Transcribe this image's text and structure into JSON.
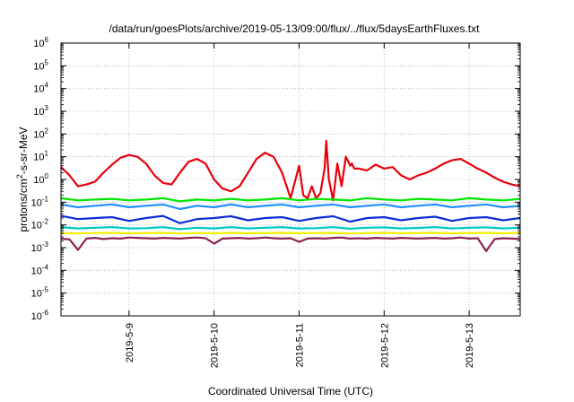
{
  "chart_data": {
    "type": "line",
    "title": "/data/run/goesPlots/archive/2019-05-13/09:00/flux/../flux/5daysEarthFluxes.txt",
    "xlabel": "Coordinated Universal Time (UTC)",
    "ylabel": {
      "base": "protons/cm",
      "sup": "2",
      "rest": "-s-sr-MeV"
    },
    "xlim": [
      "2019-05-08 05:00",
      "2019-05-13 09:00"
    ],
    "x_ticks": [
      "2019-5-9",
      "2019-5-10",
      "2019-5-11",
      "2019-5-12",
      "2019-5-13"
    ],
    "y_scale": "log",
    "ylim": [
      1e-06,
      1000000.0
    ],
    "y_ticks": [
      {
        "exp": -6,
        "label": "10",
        "sup": "-6"
      },
      {
        "exp": -5,
        "label": "10",
        "sup": "-5"
      },
      {
        "exp": -4,
        "label": "10",
        "sup": "-4"
      },
      {
        "exp": -3,
        "label": "10",
        "sup": "-3"
      },
      {
        "exp": -2,
        "label": "10",
        "sup": "-2"
      },
      {
        "exp": -1,
        "label": "10",
        "sup": "-1"
      },
      {
        "exp": 0,
        "label": "10",
        "sup": "0"
      },
      {
        "exp": 1,
        "label": "10",
        "sup": "1"
      },
      {
        "exp": 2,
        "label": "10",
        "sup": "2"
      },
      {
        "exp": 3,
        "label": "10",
        "sup": "3"
      },
      {
        "exp": 4,
        "label": "10",
        "sup": "4"
      },
      {
        "exp": 5,
        "label": "10",
        "sup": "5"
      },
      {
        "exp": 6,
        "label": "10",
        "sup": "6"
      }
    ],
    "grid": true,
    "legend": "none",
    "series": [
      {
        "color": "#e8000b",
        "x": [
          -0.8,
          -0.7,
          -0.6,
          -0.5,
          -0.4,
          -0.3,
          -0.2,
          -0.1,
          0,
          0.1,
          0.2,
          0.3,
          0.4,
          0.5,
          0.6,
          0.7,
          0.8,
          0.9,
          1,
          1.1,
          1.2,
          1.3,
          1.4,
          1.5,
          1.6,
          1.7,
          1.8,
          1.9,
          2,
          2.05,
          2.1,
          2.15,
          2.2,
          2.25,
          2.3,
          2.32,
          2.35,
          2.4,
          2.45,
          2.5,
          2.55,
          2.58,
          2.6,
          2.62,
          2.65,
          2.7,
          2.8,
          2.9,
          3,
          3.1,
          3.2,
          3.3,
          3.4,
          3.5,
          3.6,
          3.7,
          3.8,
          3.9,
          4,
          4.1,
          4.2,
          4.3,
          4.4,
          4.5,
          4.6
        ],
        "y": [
          3.5,
          1.5,
          0.5,
          0.6,
          0.8,
          2.0,
          4.5,
          9.0,
          12.0,
          10.0,
          5.0,
          1.5,
          0.7,
          0.6,
          2.0,
          6.0,
          8.0,
          5.0,
          1.0,
          0.4,
          0.3,
          0.5,
          2.0,
          8.0,
          15.0,
          10.0,
          2.0,
          0.15,
          4.0,
          0.2,
          0.15,
          0.5,
          0.15,
          0.25,
          3.0,
          50.0,
          1.0,
          0.12,
          5.0,
          0.5,
          10.0,
          6.0,
          4.0,
          5.0,
          3.0,
          3.0,
          2.5,
          4.5,
          3.0,
          3.5,
          1.5,
          1.0,
          1.5,
          2.0,
          3.0,
          5.0,
          7.0,
          8.0,
          5.0,
          3.0,
          2.0,
          1.2,
          0.8,
          0.6,
          0.5
        ]
      },
      {
        "color": "#00e600",
        "x": [
          -0.8,
          -0.6,
          -0.4,
          -0.2,
          0,
          0.2,
          0.4,
          0.6,
          0.8,
          1,
          1.2,
          1.4,
          1.6,
          1.8,
          2,
          2.2,
          2.4,
          2.6,
          2.8,
          3,
          3.2,
          3.4,
          3.6,
          3.8,
          4,
          4.2,
          4.4,
          4.6
        ],
        "y": [
          0.15,
          0.12,
          0.13,
          0.14,
          0.12,
          0.13,
          0.15,
          0.11,
          0.13,
          0.12,
          0.14,
          0.12,
          0.13,
          0.15,
          0.12,
          0.14,
          0.13,
          0.12,
          0.15,
          0.13,
          0.12,
          0.14,
          0.13,
          0.12,
          0.15,
          0.13,
          0.12,
          0.14
        ]
      },
      {
        "color": "#1e90ff",
        "x": [
          -0.8,
          -0.6,
          -0.4,
          -0.2,
          0,
          0.2,
          0.4,
          0.6,
          0.8,
          1,
          1.2,
          1.4,
          1.6,
          1.8,
          2,
          2.2,
          2.4,
          2.6,
          2.8,
          3,
          3.2,
          3.4,
          3.6,
          3.8,
          4,
          4.2,
          4.4,
          4.6
        ],
        "y": [
          0.08,
          0.06,
          0.07,
          0.08,
          0.06,
          0.07,
          0.08,
          0.05,
          0.07,
          0.06,
          0.08,
          0.06,
          0.07,
          0.08,
          0.06,
          0.07,
          0.08,
          0.06,
          0.07,
          0.08,
          0.06,
          0.07,
          0.08,
          0.06,
          0.07,
          0.08,
          0.06,
          0.07
        ]
      },
      {
        "color": "#0a2fd6",
        "x": [
          -0.8,
          -0.6,
          -0.4,
          -0.2,
          0,
          0.2,
          0.4,
          0.6,
          0.8,
          1,
          1.2,
          1.4,
          1.6,
          1.8,
          2,
          2.2,
          2.4,
          2.6,
          2.8,
          3,
          3.2,
          3.4,
          3.6,
          3.8,
          4,
          4.2,
          4.4,
          4.6
        ],
        "y": [
          0.025,
          0.018,
          0.02,
          0.022,
          0.015,
          0.02,
          0.025,
          0.012,
          0.018,
          0.02,
          0.024,
          0.016,
          0.02,
          0.022,
          0.015,
          0.02,
          0.024,
          0.014,
          0.02,
          0.022,
          0.016,
          0.02,
          0.023,
          0.015,
          0.02,
          0.022,
          0.016,
          0.02
        ]
      },
      {
        "color": "#00c8c8",
        "x": [
          -0.8,
          -0.6,
          -0.4,
          -0.2,
          0,
          0.2,
          0.4,
          0.6,
          0.8,
          1,
          1.2,
          1.4,
          1.6,
          1.8,
          2,
          2.2,
          2.4,
          2.6,
          2.8,
          3,
          3.2,
          3.4,
          3.6,
          3.8,
          4,
          4.2,
          4.4,
          4.6
        ],
        "y": [
          0.008,
          0.007,
          0.0075,
          0.008,
          0.007,
          0.0072,
          0.008,
          0.0065,
          0.0075,
          0.007,
          0.008,
          0.007,
          0.0075,
          0.008,
          0.007,
          0.0072,
          0.008,
          0.0068,
          0.0075,
          0.0078,
          0.007,
          0.0074,
          0.008,
          0.007,
          0.0075,
          0.0078,
          0.007,
          0.0075
        ]
      },
      {
        "color": "#f0f000",
        "x": [
          -0.8,
          -0.6,
          -0.4,
          -0.2,
          0,
          0.2,
          0.4,
          0.6,
          0.8,
          1,
          1.2,
          1.4,
          1.6,
          1.8,
          2,
          2.2,
          2.4,
          2.6,
          2.8,
          3,
          3.2,
          3.4,
          3.6,
          3.8,
          4,
          4.2,
          4.4,
          4.6
        ],
        "y": [
          0.0045,
          0.0042,
          0.0044,
          0.0045,
          0.0043,
          0.0044,
          0.0045,
          0.0042,
          0.0044,
          0.0043,
          0.0045,
          0.0043,
          0.0044,
          0.0045,
          0.0043,
          0.0044,
          0.0045,
          0.0042,
          0.0044,
          0.0045,
          0.0043,
          0.0044,
          0.0045,
          0.0043,
          0.0044,
          0.0045,
          0.0043,
          0.0044
        ]
      },
      {
        "color": "#8b2252",
        "x": [
          -0.8,
          -0.7,
          -0.6,
          -0.5,
          -0.4,
          -0.3,
          -0.2,
          -0.1,
          0,
          0.1,
          0.2,
          0.3,
          0.4,
          0.5,
          0.6,
          0.7,
          0.8,
          0.9,
          1,
          1.1,
          1.2,
          1.3,
          1.4,
          1.5,
          1.6,
          1.7,
          1.8,
          1.9,
          2,
          2.1,
          2.2,
          2.3,
          2.4,
          2.5,
          2.6,
          2.7,
          2.8,
          2.9,
          3,
          3.1,
          3.2,
          3.3,
          3.4,
          3.5,
          3.6,
          3.7,
          3.8,
          3.9,
          4,
          4.1,
          4.2,
          4.3,
          4.4,
          4.5,
          4.6
        ],
        "y": [
          0.0025,
          0.0023,
          0.0008,
          0.0025,
          0.0027,
          0.0024,
          0.0026,
          0.0025,
          0.0028,
          0.0027,
          0.0026,
          0.0025,
          0.0027,
          0.0026,
          0.0025,
          0.0027,
          0.0028,
          0.0026,
          0.0015,
          0.0025,
          0.0026,
          0.0027,
          0.0025,
          0.0026,
          0.0028,
          0.0026,
          0.0025,
          0.0026,
          0.0018,
          0.0025,
          0.0026,
          0.0025,
          0.0027,
          0.0028,
          0.0025,
          0.0026,
          0.0025,
          0.0027,
          0.0026,
          0.0025,
          0.0027,
          0.0026,
          0.0025,
          0.0026,
          0.0027,
          0.0025,
          0.0026,
          0.0028,
          0.0025,
          0.0026,
          0.0007,
          0.0024,
          0.0026,
          0.0025,
          0.0024
        ]
      }
    ]
  }
}
